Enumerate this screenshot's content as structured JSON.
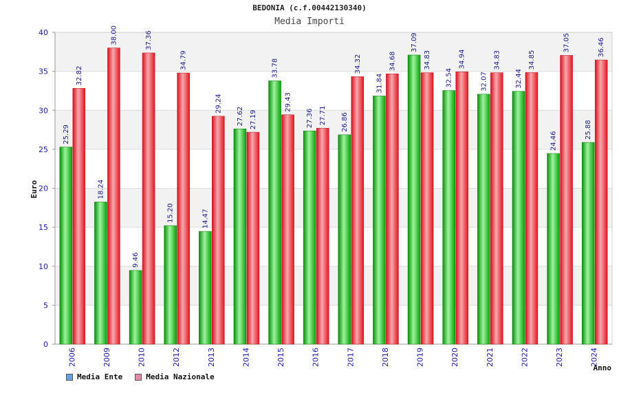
{
  "title": "BEDONIA (c.f.00442130340)",
  "subtitle": "Media Importi",
  "colors": {
    "ente": "#13c113",
    "nazionale": "#e8222e",
    "legend_ente": "#5da5e6",
    "legend_nazionale": "#e28aa6",
    "axis_text": "#1a1aa6",
    "label_text": "#1a1a8c"
  },
  "legend": [
    {
      "label": "Media Ente",
      "color": "#5da5e6"
    },
    {
      "label": "Media Nazionale",
      "color": "#e28aa6"
    }
  ],
  "chart_data": {
    "type": "bar",
    "title": "BEDONIA (c.f.00442130340)",
    "subtitle": "Media Importi",
    "xlabel": "Anno",
    "ylabel": "Euro",
    "ylim": [
      0,
      40
    ],
    "yticks": [
      0,
      5,
      10,
      15,
      20,
      25,
      30,
      35,
      40
    ],
    "grid": true,
    "legend_position": "bottom-left",
    "categories": [
      "2006",
      "2009",
      "2010",
      "2012",
      "2013",
      "2014",
      "2015",
      "2016",
      "2017",
      "2018",
      "2019",
      "2020",
      "2021",
      "2022",
      "2023",
      "2024"
    ],
    "series": [
      {
        "name": "Media Ente",
        "color": "#13c113",
        "values": [
          25.29,
          18.24,
          9.46,
          15.2,
          14.47,
          27.62,
          33.78,
          27.36,
          26.86,
          31.84,
          37.09,
          32.54,
          32.07,
          32.44,
          24.46,
          25.88
        ],
        "labels": [
          "25.29",
          "18.24",
          "9.46",
          "15.20",
          "14.47",
          "27.62",
          "33.78",
          "27.36",
          "26.86",
          "31.84",
          "37.09",
          "32.54",
          "32.07",
          "32.44",
          "24.46",
          "25.88"
        ]
      },
      {
        "name": "Media Nazionale",
        "color": "#e8222e",
        "values": [
          32.82,
          38.0,
          37.36,
          34.79,
          29.24,
          27.19,
          29.43,
          27.71,
          34.32,
          34.68,
          34.83,
          34.94,
          34.83,
          34.85,
          37.05,
          36.46
        ],
        "labels": [
          "32.82",
          "38.00",
          "37.36",
          "34.79",
          "29.24",
          "27.19",
          "29.43",
          "27.71",
          "34.32",
          "34.68",
          "34.83",
          "34.94",
          "34.83",
          "34.85",
          "37.05",
          "36.46"
        ]
      }
    ]
  }
}
